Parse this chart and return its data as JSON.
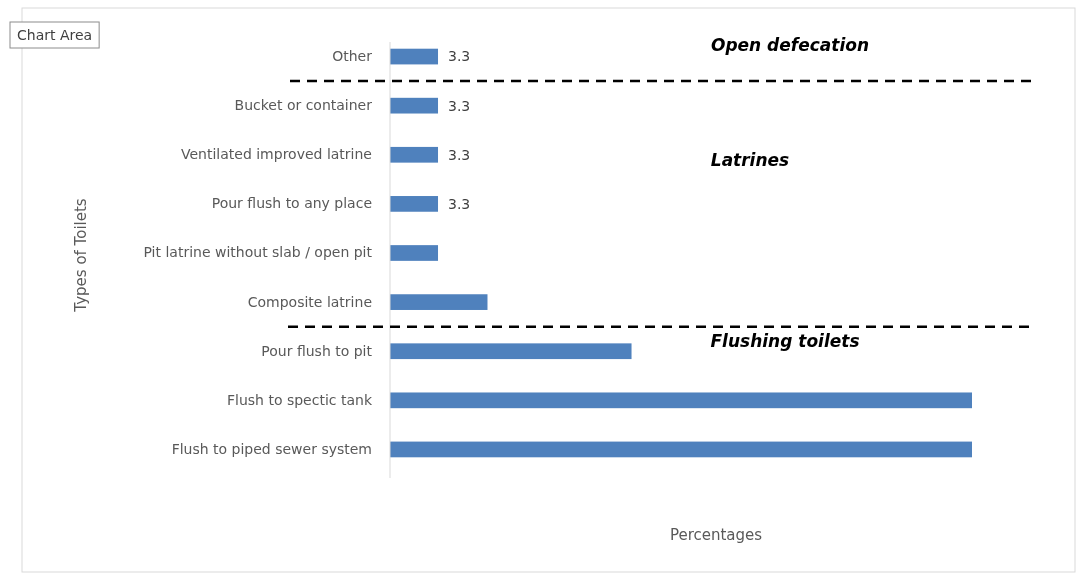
{
  "chart_data": {
    "type": "bar",
    "orientation": "horizontal",
    "xlabel": "Percentages",
    "ylabel": "Types of Toilets",
    "categories": [
      "Other",
      "Bucket or container",
      "Ventilated improved latrine",
      "Pour flush to any place",
      "Pit latrine without slab / open pit",
      "Composite latrine",
      "Pour flush to pit",
      "Flush to spectic tank",
      "Flush to piped sewer system"
    ],
    "values": [
      3.3,
      3.3,
      3.3,
      3.3,
      3.3,
      6.7,
      16.6,
      40,
      40
    ],
    "value_labels": [
      "3.3",
      "3.3",
      "3.3",
      "3.3",
      null,
      null,
      null,
      null,
      null
    ],
    "color": "#4f81bd",
    "annotations": [
      "Chart Area",
      "Open defecation",
      "Latrines",
      "Flushing toilets"
    ]
  }
}
